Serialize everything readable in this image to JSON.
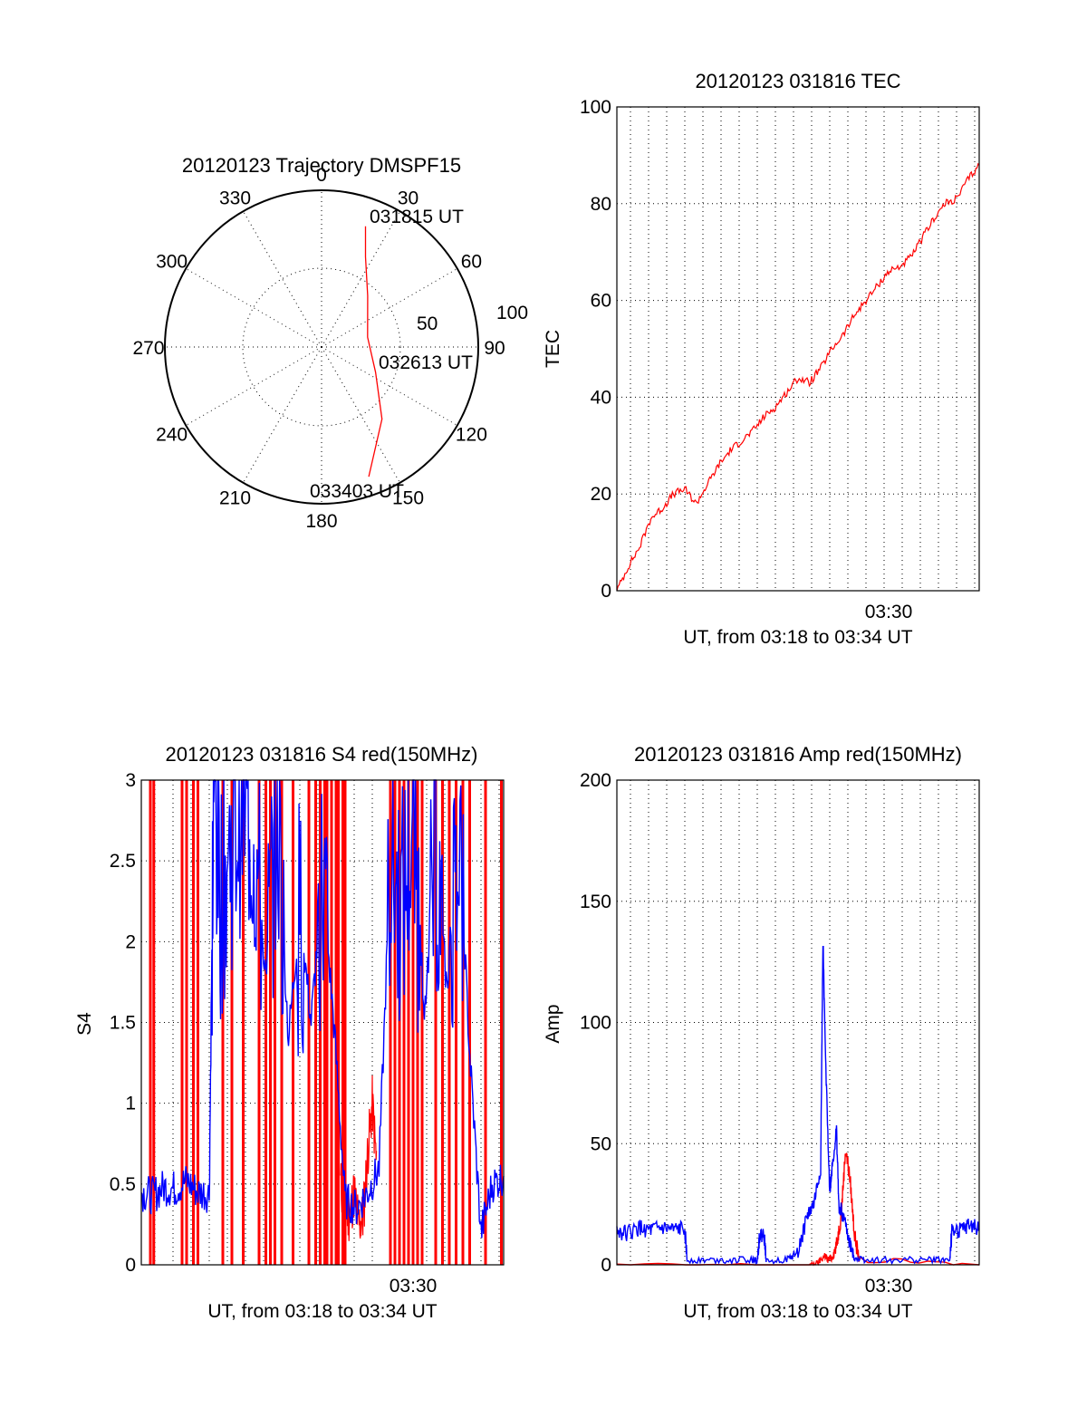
{
  "chart_data": [
    {
      "type": "polar",
      "title": "20120123 Trajectory DMSPF15",
      "azimuth_labels": [
        "0",
        "30",
        "60",
        "90",
        "120",
        "150",
        "180",
        "210",
        "240",
        "270",
        "300",
        "330"
      ],
      "radial_labels": [
        "50",
        "100"
      ],
      "rlim": [
        0,
        100
      ],
      "grid": true,
      "series": [
        {
          "color": "#ff0000",
          "points": [
            {
              "az": 20,
              "zenith": 82
            },
            {
              "az": 26,
              "zenith": 64
            },
            {
              "az": 42,
              "zenith": 44
            },
            {
              "az": 78,
              "zenith": 30
            },
            {
              "az": 115,
              "zenith": 38
            },
            {
              "az": 140,
              "zenith": 60
            },
            {
              "az": 160,
              "zenith": 88
            }
          ]
        }
      ],
      "annotations": [
        "031815 UT",
        "032613 UT",
        "033403 UT"
      ]
    },
    {
      "type": "line",
      "title": "20120123 031816 TEC",
      "xlabel": "UT, from 03:18 to 03:34 UT",
      "ylabel": "TEC",
      "xlim": [
        0,
        16
      ],
      "ylim": [
        0,
        100
      ],
      "yticks": [
        "0",
        "20",
        "40",
        "60",
        "80",
        "100"
      ],
      "xtick_label": "03:30",
      "grid": true,
      "series": [
        {
          "color": "#ff0000",
          "x": [
            0,
            0.5,
            1,
            1.5,
            2,
            2.5,
            3,
            3.5,
            4,
            4.5,
            5,
            5.5,
            6,
            6.5,
            7,
            7.5,
            8,
            8.5,
            9,
            9.5,
            10,
            10.5,
            11,
            11.5,
            12,
            12.5,
            13,
            13.5,
            14,
            14.5,
            15,
            15.5,
            16
          ],
          "y": [
            0,
            5,
            9,
            15,
            17,
            20,
            21,
            18,
            22,
            26,
            29,
            31,
            33,
            36,
            38,
            41,
            44,
            43,
            46,
            50,
            53,
            57,
            60,
            63,
            66,
            67,
            69,
            73,
            77,
            80,
            81,
            85,
            88
          ]
        }
      ]
    },
    {
      "type": "line",
      "title": "20120123 031816 S4 red(150MHz)",
      "xlabel": "UT, from 03:18 to 03:34 UT",
      "ylabel": "S4",
      "xlim": [
        0,
        16
      ],
      "ylim": [
        0,
        3
      ],
      "yticks": [
        "0",
        "0.5",
        "1",
        "1.5",
        "2",
        "2.5",
        "3"
      ],
      "xtick_label": "03:30",
      "grid": true,
      "series": [
        {
          "color": "#ff0000",
          "x": [
            0.4,
            0.55,
            1.8,
            2.0,
            2.3,
            2.5,
            3.6,
            4.0,
            4.5,
            5.2,
            5.5,
            5.7,
            5.9,
            6.2,
            6.7,
            7.4,
            7.7,
            7.9,
            8.1,
            8.2,
            8.4,
            8.6,
            8.7,
            8.9,
            9.0,
            11.0,
            11.2,
            11.4,
            11.6,
            11.8,
            12.0,
            12.2,
            12.4,
            13.0,
            13.3,
            13.6,
            13.9,
            14.2,
            14.5,
            15.2,
            15.9
          ],
          "y": [
            3,
            3,
            3,
            3,
            3,
            3,
            3,
            3,
            3,
            3,
            3,
            3,
            3,
            3,
            3,
            3,
            3,
            3,
            3,
            3,
            3,
            3,
            3,
            3,
            3,
            3,
            3,
            3,
            3,
            3,
            3,
            3,
            3,
            3,
            3,
            3,
            3,
            3,
            3,
            3,
            3
          ],
          "segments": [
            {
              "x": [
                8.8,
                9.0,
                9.2,
                9.4,
                9.6,
                9.8,
                10.0,
                10.2,
                10.4
              ],
              "y": [
                0.5,
                0.35,
                0.3,
                0.45,
                0.25,
                0.3,
                0.7,
                1.0,
                0.6
              ]
            }
          ]
        },
        {
          "color": "#0000ff",
          "x": [
            0,
            0.5,
            1,
            1.5,
            2,
            2.5,
            3.0,
            3.2,
            3.5,
            4.0,
            4.5,
            5.0,
            5.5,
            6.0,
            6.5,
            7.0,
            7.5,
            8.0,
            8.5,
            9.0,
            9.5,
            10.0,
            10.5,
            11.0,
            11.5,
            12.0,
            12.5,
            13.0,
            13.5,
            14.0,
            14.5,
            15.0,
            15.5,
            16.0
          ],
          "y": [
            0.45,
            0.43,
            0.48,
            0.47,
            0.52,
            0.45,
            0.44,
            3.0,
            2.3,
            2.6,
            2.9,
            2.6,
            1.8,
            2.8,
            1.4,
            2.2,
            1.5,
            2.4,
            1.5,
            0.4,
            0.35,
            0.45,
            0.6,
            2.5,
            2.2,
            2.7,
            1.6,
            2.5,
            1.7,
            2.8,
            1.3,
            0.2,
            0.5,
            0.55
          ]
        }
      ]
    },
    {
      "type": "line",
      "title": "20120123 031816 Amp red(150MHz)",
      "xlabel": "UT, from 03:18 to 03:34 UT",
      "ylabel": "Amp",
      "xlim": [
        0,
        16
      ],
      "ylim": [
        0,
        200
      ],
      "yticks": [
        "0",
        "50",
        "100",
        "150",
        "200"
      ],
      "xtick_label": "03:30",
      "grid": true,
      "series": [
        {
          "color": "#ff0000",
          "x": [
            0,
            8.5,
            8.9,
            9.2,
            9.3,
            9.5,
            9.7,
            9.9,
            10.1,
            10.3,
            10.5,
            10.7,
            16
          ],
          "y": [
            0,
            0,
            1,
            4,
            2,
            3,
            8,
            20,
            48,
            35,
            12,
            2,
            0
          ]
        },
        {
          "color": "#0000ff",
          "x": [
            0,
            0.5,
            1.0,
            1.5,
            2.0,
            2.5,
            3.0,
            3.1,
            4.0,
            5.0,
            6.0,
            6.2,
            6.3,
            6.5,
            6.6,
            7.5,
            8.0,
            8.4,
            8.7,
            9.0,
            9.1,
            9.2,
            9.4,
            9.5,
            9.7,
            9.8,
            10.0,
            10.3,
            10.5,
            11.0,
            12.0,
            13.0,
            14.0,
            14.7,
            14.8,
            15.2,
            15.6,
            16.0
          ],
          "y": [
            14,
            13,
            15,
            14,
            15,
            14,
            15,
            2,
            2,
            2,
            2,
            2,
            12,
            12,
            2,
            2,
            5,
            20,
            25,
            40,
            135,
            90,
            30,
            40,
            55,
            25,
            20,
            8,
            3,
            2,
            2,
            2,
            2,
            2,
            15,
            14,
            16,
            15
          ]
        }
      ]
    }
  ]
}
